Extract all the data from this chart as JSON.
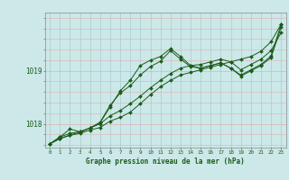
{
  "xlabel": "Graphe pression niveau de la mer (hPa)",
  "background_color": "#cce8e8",
  "plot_bg_color": "#cce8e8",
  "grid_color": "#aacece",
  "line_color": "#1a5c1a",
  "text_color": "#1a5c1a",
  "ylim": [
    1017.55,
    1020.1
  ],
  "xlim": [
    -0.5,
    23.5
  ],
  "yticks": [
    1018,
    1019
  ],
  "xticks": [
    0,
    1,
    2,
    3,
    4,
    5,
    6,
    7,
    8,
    9,
    10,
    11,
    12,
    13,
    14,
    15,
    16,
    17,
    18,
    19,
    20,
    21,
    22,
    23
  ],
  "series": [
    [
      1017.62,
      1017.72,
      1017.78,
      1017.82,
      1017.88,
      1017.93,
      1018.05,
      1018.12,
      1018.22,
      1018.38,
      1018.55,
      1018.7,
      1018.82,
      1018.92,
      1018.97,
      1019.02,
      1019.07,
      1019.12,
      1019.17,
      1019.22,
      1019.27,
      1019.37,
      1019.55,
      1019.88
    ],
    [
      1017.62,
      1017.72,
      1017.79,
      1017.84,
      1017.92,
      1018.0,
      1018.15,
      1018.25,
      1018.38,
      1018.52,
      1018.68,
      1018.82,
      1018.95,
      1019.05,
      1019.1,
      1019.12,
      1019.17,
      1019.22,
      1019.17,
      1019.02,
      1019.12,
      1019.22,
      1019.38,
      1019.72
    ],
    [
      1017.62,
      1017.75,
      1017.82,
      1017.85,
      1017.92,
      1018.02,
      1018.32,
      1018.62,
      1018.82,
      1019.1,
      1019.2,
      1019.27,
      1019.42,
      1019.27,
      1019.1,
      1019.05,
      1019.1,
      1019.15,
      1019.05,
      1018.92,
      1019.02,
      1019.12,
      1019.28,
      1019.88
    ],
    [
      1017.62,
      1017.75,
      1017.9,
      1017.85,
      1017.92,
      1018.03,
      1018.35,
      1018.58,
      1018.72,
      1018.92,
      1019.08,
      1019.18,
      1019.38,
      1019.22,
      1019.08,
      1019.05,
      1019.1,
      1019.15,
      1019.05,
      1018.9,
      1019.0,
      1019.1,
      1019.25,
      1019.82
    ]
  ]
}
